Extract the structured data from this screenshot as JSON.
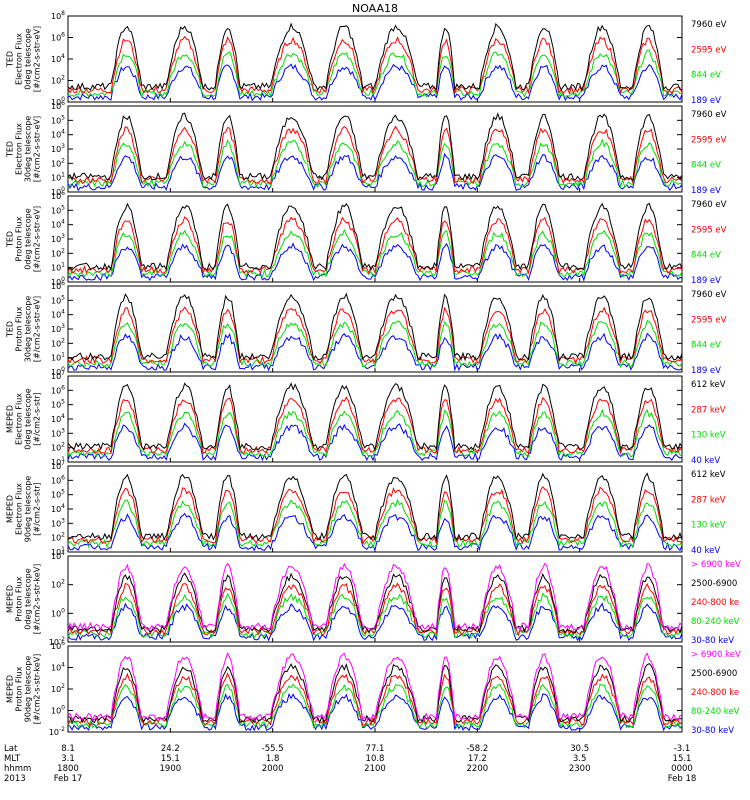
{
  "chart_data": {
    "type": "line",
    "title": "NOAA18",
    "panels": [
      {
        "id": "ted-e-0",
        "ylabel": [
          "TED",
          "Electron Flux",
          "0deg telescope",
          "[#/cm2-s-str-eV]"
        ],
        "ytick_exps": [
          0,
          2,
          4,
          6,
          8
        ],
        "series": [
          {
            "name": "7960 eV",
            "color": "#000000"
          },
          {
            "name": "2595 eV",
            "color": "#ff0000"
          },
          {
            "name": "844 eV",
            "color": "#00dd00"
          },
          {
            "name": "189 eV",
            "color": "#0000ff"
          }
        ]
      },
      {
        "id": "ted-e-30",
        "ylabel": [
          "TED",
          "Electron Flux",
          "30deg telescope",
          "[#/cm2-s-str-eV]"
        ],
        "ytick_exps": [
          0,
          1,
          2,
          3,
          4,
          5,
          6
        ],
        "series": [
          {
            "name": "7960 eV",
            "color": "#000000"
          },
          {
            "name": "2595 eV",
            "color": "#ff0000"
          },
          {
            "name": "844 eV",
            "color": "#00dd00"
          },
          {
            "name": "189 eV",
            "color": "#0000ff"
          }
        ]
      },
      {
        "id": "ted-p-0",
        "ylabel": [
          "TED",
          "Proton Flux",
          "0deg telescope",
          "[#/cm2-s-str-eV]"
        ],
        "ytick_exps": [
          0,
          1,
          2,
          3,
          4,
          5,
          6
        ],
        "series": [
          {
            "name": "7960 eV",
            "color": "#000000"
          },
          {
            "name": "2595 eV",
            "color": "#ff0000"
          },
          {
            "name": "844 eV",
            "color": "#00dd00"
          },
          {
            "name": "189 eV",
            "color": "#0000ff"
          }
        ]
      },
      {
        "id": "ted-p-30",
        "ylabel": [
          "TED",
          "Proton Flux",
          "30deg telescope",
          "[#/cm2-s-str-eV]"
        ],
        "ytick_exps": [
          0,
          1,
          2,
          3,
          4,
          5,
          6
        ],
        "series": [
          {
            "name": "7960 eV",
            "color": "#000000"
          },
          {
            "name": "2595 eV",
            "color": "#ff0000"
          },
          {
            "name": "844 eV",
            "color": "#00dd00"
          },
          {
            "name": "189 eV",
            "color": "#0000ff"
          }
        ]
      },
      {
        "id": "meped-e-0",
        "ylabel": [
          "MEPED",
          "Electron Flux",
          "0deg telescope",
          "[#/cm2-s-str]"
        ],
        "ytick_exps": [
          1,
          2,
          3,
          4,
          5,
          6,
          7
        ],
        "series": [
          {
            "name": "612 keV",
            "color": "#000000"
          },
          {
            "name": "287 keV",
            "color": "#ff0000"
          },
          {
            "name": "130 keV",
            "color": "#00dd00"
          },
          {
            "name": "40 keV",
            "color": "#0000ff"
          }
        ]
      },
      {
        "id": "meped-e-90",
        "ylabel": [
          "MEPED",
          "Electron Flux",
          "90deg telescope",
          "[#/cm2-s-str]"
        ],
        "ytick_exps": [
          1,
          2,
          3,
          4,
          5,
          6,
          7
        ],
        "series": [
          {
            "name": "612 keV",
            "color": "#000000"
          },
          {
            "name": "287 keV",
            "color": "#ff0000"
          },
          {
            "name": "130 keV",
            "color": "#00dd00"
          },
          {
            "name": "40 keV",
            "color": "#0000ff"
          }
        ]
      },
      {
        "id": "meped-p-0",
        "ylabel": [
          "MEPED",
          "Proton Flux",
          "0deg telescope",
          "[#/cm2-s-str-keV]"
        ],
        "ytick_exps": [
          -2,
          0,
          2,
          4
        ],
        "series": [
          {
            "name": "> 6900 keV",
            "color": "#ff00ff"
          },
          {
            "name": "2500-6900",
            "color": "#000000"
          },
          {
            "name": "240-800 ke",
            "color": "#ff0000"
          },
          {
            "name": "80-240 keV",
            "color": "#00dd00"
          },
          {
            "name": "30-80 keV",
            "color": "#0000ff"
          }
        ]
      },
      {
        "id": "meped-p-90",
        "ylabel": [
          "MEPED",
          "Proton Flux",
          "90deg telescope",
          "[#/cm2-s-str-keV]"
        ],
        "ytick_exps": [
          -2,
          0,
          2,
          4,
          6
        ],
        "series": [
          {
            "name": "> 6900 keV",
            "color": "#ff00ff"
          },
          {
            "name": "2500-6900",
            "color": "#000000"
          },
          {
            "name": "240-800 ke",
            "color": "#ff0000"
          },
          {
            "name": "80-240 keV",
            "color": "#00dd00"
          },
          {
            "name": "30-80 keV",
            "color": "#0000ff"
          }
        ]
      }
    ],
    "x_axis": {
      "row_labels": [
        "Lat",
        "MLT",
        "hhmm",
        "2013"
      ],
      "ticks": [
        {
          "lat": "8.1",
          "mlt": "3.1",
          "hhmm": "1800",
          "date": "Feb 17"
        },
        {
          "lat": "24.2",
          "mlt": "15.1",
          "hhmm": "1900",
          "date": ""
        },
        {
          "lat": "-55.5",
          "mlt": "1.8",
          "hhmm": "2000",
          "date": ""
        },
        {
          "lat": "77.1",
          "mlt": "10.8",
          "hhmm": "2100",
          "date": ""
        },
        {
          "lat": "-58.2",
          "mlt": "17.2",
          "hhmm": "2200",
          "date": ""
        },
        {
          "lat": "30.5",
          "mlt": "3.5",
          "hhmm": "2300",
          "date": ""
        },
        {
          "lat": "-3.1",
          "mlt": "15.1",
          "hhmm": "0000",
          "date": "Feb 18"
        }
      ]
    }
  }
}
